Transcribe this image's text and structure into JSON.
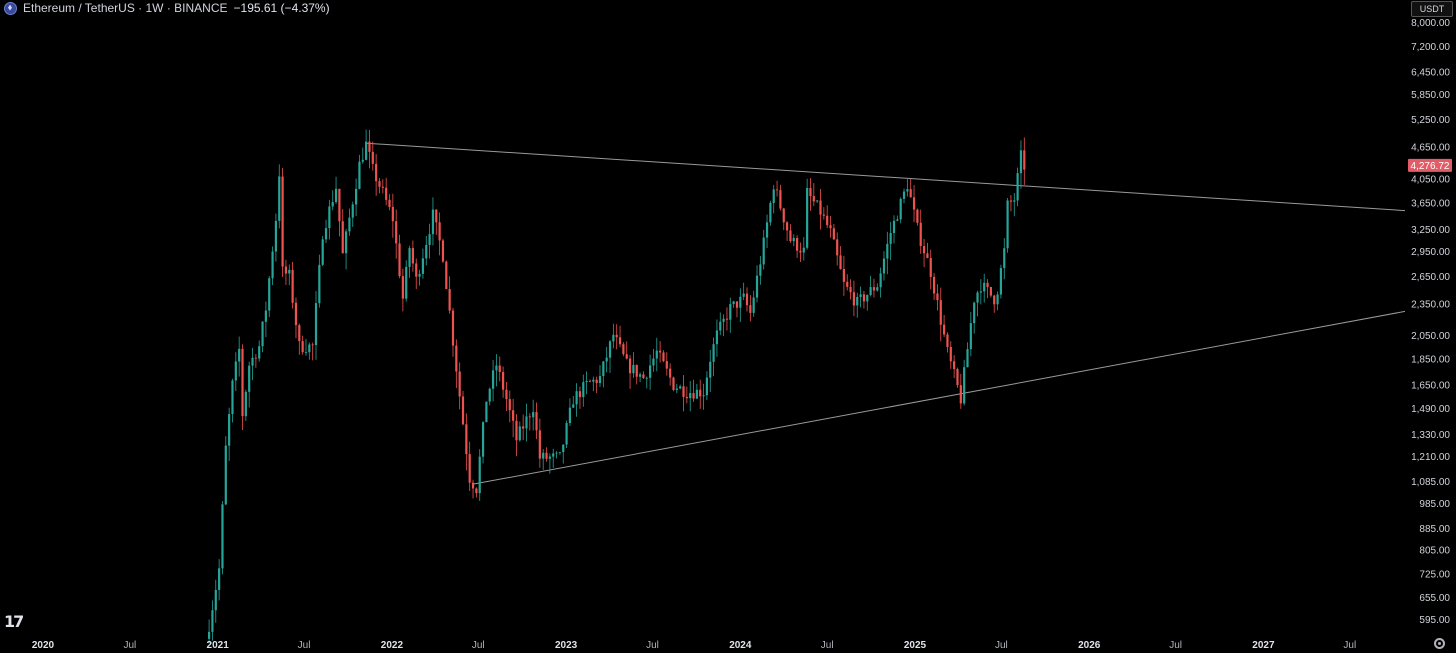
{
  "header": {
    "symbol": "Ethereum / TetherUS · 1W · BINANCE",
    "change": "−195.61 (−4.37%)",
    "currency": "USDT"
  },
  "colors": {
    "up": "#26a69a",
    "down": "#ef5350",
    "background": "#000000",
    "trendline": "#9a9a9a",
    "price_tag": "#e25c68"
  },
  "icons": [
    "ethereum-logo-icon",
    "tradingview-logo-icon",
    "settings-gear-icon"
  ],
  "chart_data": {
    "type": "candlestick",
    "scale": "log",
    "ylim": [
      560,
      8400
    ],
    "current_price": "4,276.72",
    "y_ticks": [
      8000,
      7200,
      6450,
      5850,
      5250,
      4650,
      4050,
      3650,
      3250,
      2950,
      2650,
      2350,
      2050,
      1850,
      1650,
      1490,
      1330,
      1210,
      1085,
      985,
      885,
      805,
      725,
      655,
      595
    ],
    "y_tick_labels": [
      "8,000.00",
      "7,200.00",
      "6,450.00",
      "5,850.00",
      "5,250.00",
      "4,650.00",
      "4,050.00",
      "3,650.00",
      "3,250.00",
      "2,950.00",
      "2,650.00",
      "2,350.00",
      "2,050.00",
      "1,850.00",
      "1,650.00",
      "1,490.00",
      "1,330.00",
      "1,210.00",
      "1,085.00",
      "985.00",
      "885.00",
      "805.00",
      "725.00",
      "655.00",
      "595.00"
    ],
    "x_ticks": [
      {
        "label": "2020",
        "date": "2020-01-01"
      },
      {
        "label": "Jul",
        "date": "2020-07-01"
      },
      {
        "label": "2021",
        "date": "2021-01-01"
      },
      {
        "label": "Jul",
        "date": "2021-07-01"
      },
      {
        "label": "2022",
        "date": "2022-01-01"
      },
      {
        "label": "Jul",
        "date": "2022-07-01"
      },
      {
        "label": "2023",
        "date": "2023-01-01"
      },
      {
        "label": "Jul",
        "date": "2023-07-01"
      },
      {
        "label": "2024",
        "date": "2024-01-01"
      },
      {
        "label": "Jul",
        "date": "2024-07-01"
      },
      {
        "label": "2025",
        "date": "2025-01-01"
      },
      {
        "label": "Jul",
        "date": "2025-07-01"
      },
      {
        "label": "2026",
        "date": "2026-01-01"
      },
      {
        "label": "Jul",
        "date": "2026-07-01"
      },
      {
        "label": "2027",
        "date": "2027-01-01"
      },
      {
        "label": "Jul",
        "date": "2027-07-01"
      }
    ],
    "trendlines": [
      {
        "name": "",
        "start": {
          "date": "2021-11-08",
          "price": 4720
        },
        "end": {
          "date": "2027-12-31",
          "price": 3520
        }
      },
      {
        "name": "",
        "start": {
          "date": "2022-06-20",
          "price": 1070
        },
        "end": {
          "date": "2027-12-31",
          "price": 2270
        }
      }
    ],
    "price_path": [
      {
        "date": "2020-12-14",
        "price": 580
      },
      {
        "date": "2021-01-04",
        "price": 740
      },
      {
        "date": "2021-01-18",
        "price": 1250
      },
      {
        "date": "2021-02-01",
        "price": 1650
      },
      {
        "date": "2021-02-15",
        "price": 1920
      },
      {
        "date": "2021-02-22",
        "price": 1450
      },
      {
        "date": "2021-03-08",
        "price": 1800
      },
      {
        "date": "2021-03-29",
        "price": 1950
      },
      {
        "date": "2021-04-12",
        "price": 2300
      },
      {
        "date": "2021-05-03",
        "price": 3400
      },
      {
        "date": "2021-05-10",
        "price": 4150
      },
      {
        "date": "2021-05-17",
        "price": 2700
      },
      {
        "date": "2021-05-31",
        "price": 2650
      },
      {
        "date": "2021-06-21",
        "price": 1950
      },
      {
        "date": "2021-07-19",
        "price": 1950
      },
      {
        "date": "2021-08-09",
        "price": 3200
      },
      {
        "date": "2021-09-06",
        "price": 3900
      },
      {
        "date": "2021-09-20",
        "price": 2900
      },
      {
        "date": "2021-10-04",
        "price": 3400
      },
      {
        "date": "2021-10-25",
        "price": 4300
      },
      {
        "date": "2021-11-08",
        "price": 4700
      },
      {
        "date": "2021-11-22",
        "price": 4200
      },
      {
        "date": "2021-12-13",
        "price": 3800
      },
      {
        "date": "2022-01-03",
        "price": 3400
      },
      {
        "date": "2022-01-24",
        "price": 2400
      },
      {
        "date": "2022-02-07",
        "price": 3000
      },
      {
        "date": "2022-02-21",
        "price": 2600
      },
      {
        "date": "2022-03-28",
        "price": 3450
      },
      {
        "date": "2022-04-18",
        "price": 2900
      },
      {
        "date": "2022-05-09",
        "price": 2000
      },
      {
        "date": "2022-06-13",
        "price": 1100
      },
      {
        "date": "2022-06-27",
        "price": 1050
      },
      {
        "date": "2022-07-18",
        "price": 1550
      },
      {
        "date": "2022-08-08",
        "price": 1800
      },
      {
        "date": "2022-08-29",
        "price": 1550
      },
      {
        "date": "2022-09-19",
        "price": 1300
      },
      {
        "date": "2022-10-24",
        "price": 1500
      },
      {
        "date": "2022-11-07",
        "price": 1200
      },
      {
        "date": "2022-12-19",
        "price": 1200
      },
      {
        "date": "2023-01-16",
        "price": 1550
      },
      {
        "date": "2023-02-13",
        "price": 1650
      },
      {
        "date": "2023-03-13",
        "price": 1700
      },
      {
        "date": "2023-04-10",
        "price": 2050
      },
      {
        "date": "2023-05-08",
        "price": 1800
      },
      {
        "date": "2023-06-12",
        "price": 1700
      },
      {
        "date": "2023-07-10",
        "price": 1900
      },
      {
        "date": "2023-08-14",
        "price": 1650
      },
      {
        "date": "2023-09-11",
        "price": 1600
      },
      {
        "date": "2023-10-16",
        "price": 1600
      },
      {
        "date": "2023-10-30",
        "price": 1850
      },
      {
        "date": "2023-11-13",
        "price": 2050
      },
      {
        "date": "2023-12-11",
        "price": 2300
      },
      {
        "date": "2024-01-08",
        "price": 2400
      },
      {
        "date": "2024-01-22",
        "price": 2250
      },
      {
        "date": "2024-02-19",
        "price": 3050
      },
      {
        "date": "2024-03-11",
        "price": 3950
      },
      {
        "date": "2024-04-15",
        "price": 3100
      },
      {
        "date": "2024-05-13",
        "price": 2950
      },
      {
        "date": "2024-05-20",
        "price": 3800
      },
      {
        "date": "2024-06-17",
        "price": 3500
      },
      {
        "date": "2024-07-08",
        "price": 3200
      },
      {
        "date": "2024-08-05",
        "price": 2550
      },
      {
        "date": "2024-09-02",
        "price": 2350
      },
      {
        "date": "2024-10-14",
        "price": 2550
      },
      {
        "date": "2024-11-11",
        "price": 3200
      },
      {
        "date": "2024-12-16",
        "price": 3950
      },
      {
        "date": "2025-01-06",
        "price": 3250
      },
      {
        "date": "2025-02-03",
        "price": 2700
      },
      {
        "date": "2025-03-10",
        "price": 1900
      },
      {
        "date": "2025-04-07",
        "price": 1550
      },
      {
        "date": "2025-05-05",
        "price": 2400
      },
      {
        "date": "2025-05-19",
        "price": 2550
      },
      {
        "date": "2025-06-16",
        "price": 2400
      },
      {
        "date": "2025-06-23",
        "price": 2500
      },
      {
        "date": "2025-07-07",
        "price": 2950
      },
      {
        "date": "2025-07-14",
        "price": 3600
      },
      {
        "date": "2025-07-28",
        "price": 3700
      },
      {
        "date": "2025-08-11",
        "price": 4450
      },
      {
        "date": "2025-08-18",
        "price": 4276
      }
    ]
  }
}
